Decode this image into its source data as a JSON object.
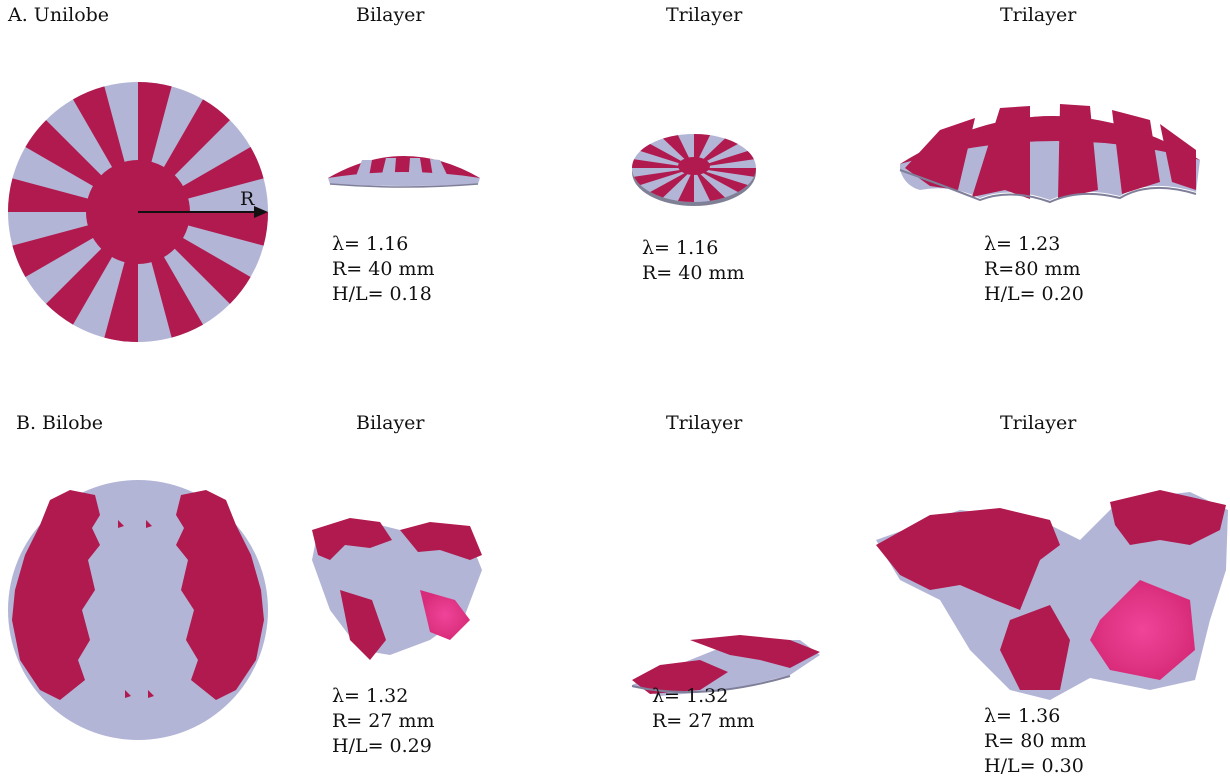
{
  "colors": {
    "crimson": "#b01a4e",
    "lavender": "#b3b5d6",
    "pink_highlight": "#e8338a"
  },
  "row_a": {
    "label": "A. Unilobe",
    "col_bilayer": "Bilayer",
    "col_trilayer_1": "Trilayer",
    "col_trilayer_2": "Trilayer",
    "radius_label": "R",
    "params": [
      {
        "lambda": "λ= 1.16",
        "r": "R= 40 mm",
        "hl": "H/L= 0.18"
      },
      {
        "lambda": "λ= 1.16",
        "r": "R= 40 mm"
      },
      {
        "lambda": "λ= 1.23",
        "r": "R=80 mm",
        "hl": "H/L= 0.20"
      }
    ]
  },
  "row_b": {
    "label": "B. Bilobe",
    "col_bilayer": "Bilayer",
    "col_trilayer_1": "Trilayer",
    "col_trilayer_2": "Trilayer",
    "params": [
      {
        "lambda": "λ= 1.32",
        "r": "R= 27 mm",
        "hl": "H/L= 0.29"
      },
      {
        "lambda": "λ= 1.32",
        "r": "R= 27 mm"
      },
      {
        "lambda": "λ= 1.36",
        "r": "R= 80 mm",
        "hl": "H/L= 0.30"
      }
    ]
  }
}
